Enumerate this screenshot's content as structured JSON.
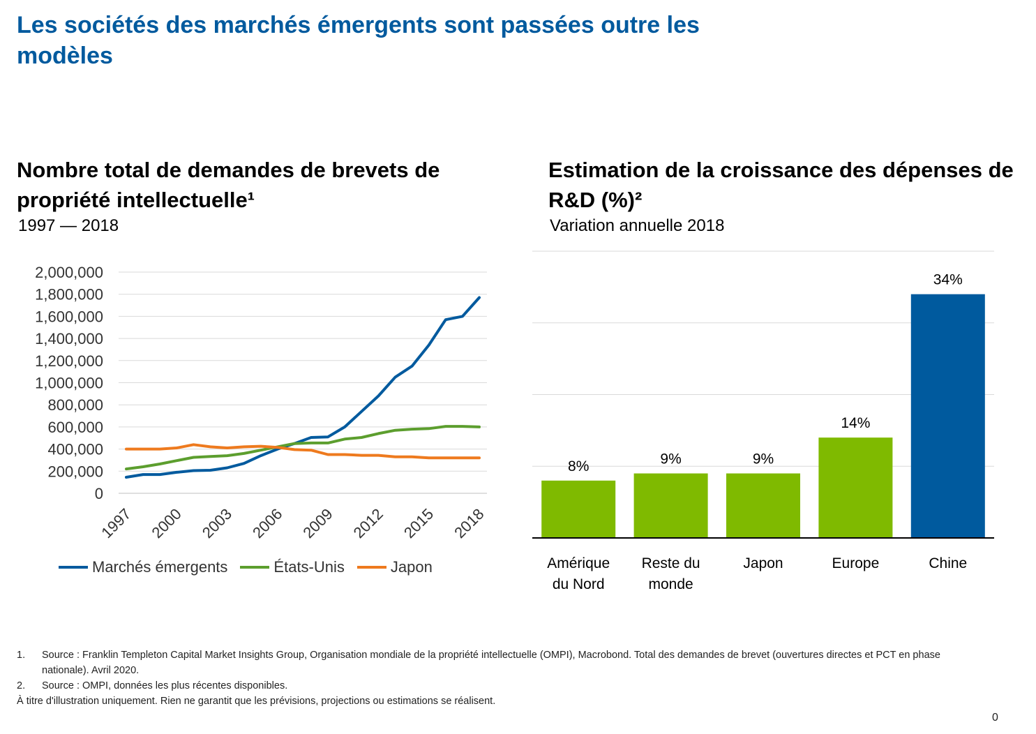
{
  "header": {
    "title": "Les sociétés des marchés émergents sont passées outre les modèles"
  },
  "left_panel": {
    "title": "Nombre total de demandes de brevets de propriété intellectuelle¹",
    "subtitle": "1997 — 2018"
  },
  "right_panel": {
    "title": "Estimation de la croissance des dépenses de R&D (%)²",
    "subtitle": "Variation annuelle 2018"
  },
  "colors": {
    "title_blue": "#005A9E",
    "emerging": "#005A9E",
    "us": "#5C9E2E",
    "japan": "#EE7A1E",
    "bar_green": "#7FBA00",
    "bar_blue": "#005A9E"
  },
  "chart_data": [
    {
      "type": "line",
      "title": "Nombre total de demandes de brevets de propriété intellectuelle¹",
      "subtitle": "1997 — 2018",
      "x": [
        1997,
        1998,
        1999,
        2000,
        2001,
        2002,
        2003,
        2004,
        2005,
        2006,
        2007,
        2008,
        2009,
        2010,
        2011,
        2012,
        2013,
        2014,
        2015,
        2016,
        2017,
        2018
      ],
      "x_tick_labels": [
        "1997",
        "2000",
        "2003",
        "2006",
        "2009",
        "2012",
        "2015",
        "2018"
      ],
      "y_tick_labels": [
        "0",
        "200,000",
        "400,000",
        "600,000",
        "800,000",
        "1,000,000",
        "1,200,000",
        "1,400,000",
        "1,600,000",
        "1,800,000",
        "2,000,000"
      ],
      "ylim": [
        0,
        2000000
      ],
      "grid": true,
      "legend": "bottom",
      "series": [
        {
          "name": "Marchés émergents",
          "color": "#005A9E",
          "values": [
            145000,
            170000,
            170000,
            190000,
            205000,
            208000,
            230000,
            270000,
            340000,
            400000,
            450000,
            505000,
            510000,
            600000,
            740000,
            880000,
            1050000,
            1150000,
            1340000,
            1570000,
            1600000,
            1770000
          ]
        },
        {
          "name": "États-Unis",
          "color": "#5C9E2E",
          "values": [
            220000,
            240000,
            265000,
            295000,
            325000,
            333000,
            340000,
            360000,
            390000,
            420000,
            450000,
            455000,
            455000,
            490000,
            505000,
            540000,
            570000,
            580000,
            585000,
            605000,
            605000,
            600000
          ]
        },
        {
          "name": "Japon",
          "color": "#EE7A1E",
          "values": [
            400000,
            400000,
            400000,
            410000,
            440000,
            420000,
            410000,
            420000,
            425000,
            415000,
            395000,
            390000,
            350000,
            350000,
            343000,
            343000,
            330000,
            330000,
            320000,
            320000,
            320000,
            320000
          ]
        }
      ]
    },
    {
      "type": "bar",
      "title": "Estimation de la croissance des dépenses de R&D (%)²",
      "subtitle": "Variation annuelle 2018",
      "categories": [
        "Amérique du Nord",
        "Reste du monde",
        "Japon",
        "Europe",
        "Chine"
      ],
      "category_lines": [
        [
          "Amérique",
          "du Nord"
        ],
        [
          "Reste du",
          "monde"
        ],
        [
          "Japon"
        ],
        [
          "Europe"
        ],
        [
          "Chine"
        ]
      ],
      "values": [
        8,
        9,
        9,
        14,
        34
      ],
      "labels": [
        "8%",
        "9%",
        "9%",
        "14%",
        "34%"
      ],
      "colors": [
        "#7FBA00",
        "#7FBA00",
        "#7FBA00",
        "#7FBA00",
        "#005A9E"
      ],
      "ylim": [
        0,
        40
      ],
      "grid": true
    }
  ],
  "footnotes": [
    {
      "num": "1.",
      "text": "Source : Franklin Templeton Capital Market Insights Group, Organisation mondiale de la propriété intellectuelle (OMPI), Macrobond. Total des demandes de brevet (ouvertures directes et PCT en phase nationale). Avril 2020."
    },
    {
      "num": "2.",
      "text": "Source : OMPI, données les plus récentes disponibles."
    }
  ],
  "disclaimer": "À titre d'illustration uniquement. Rien ne garantit que les prévisions, projections ou estimations se réalisent.",
  "page_number": "0"
}
